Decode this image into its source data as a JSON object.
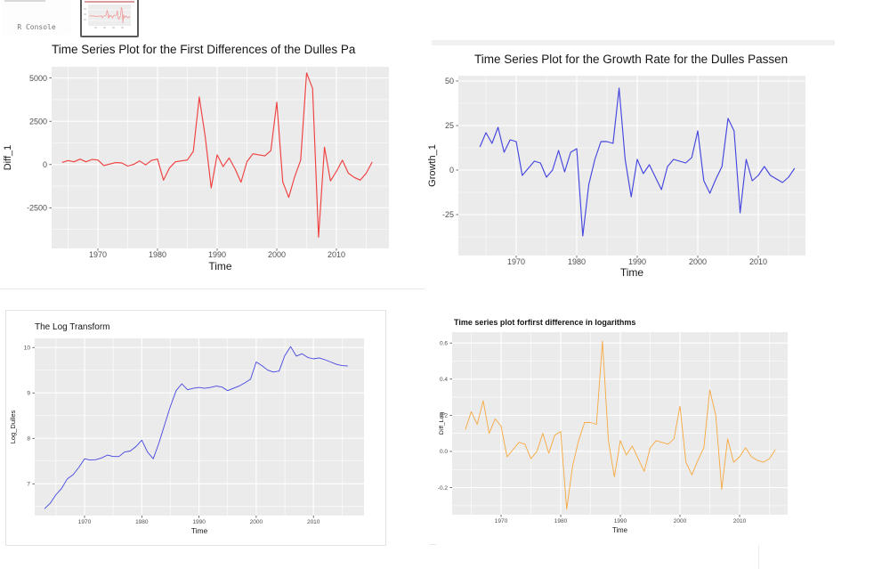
{
  "taskbar": {
    "console_thumbnail_label": "R Console"
  },
  "theme": {
    "panel_bg": "#ebebeb",
    "grid_color": "#ffffff",
    "tick_text_color": "#4d4d4d",
    "axis_title_color": "#1a1a1a"
  },
  "chart_data": [
    {
      "type": "line",
      "title": "Time Series Plot for the First Differences of the Dulles Pa",
      "xlabel": "Time",
      "ylabel": "Diff_1",
      "color": "#f04040",
      "x_ticks": [
        "1970",
        "1980",
        "1990",
        "2000",
        "2010"
      ],
      "y_ticks": [
        "5000",
        "2500",
        "0",
        "-2500"
      ],
      "x_range": [
        1964,
        2016
      ],
      "ylim": [
        -4850,
        5650
      ],
      "grid": "on",
      "values": [
        120,
        230,
        160,
        310,
        160,
        290,
        260,
        -60,
        30,
        110,
        90,
        -90,
        10,
        210,
        -20,
        240,
        310,
        -900,
        -200,
        160,
        210,
        260,
        760,
        3900,
        1600,
        -1350,
        560,
        -120,
        380,
        -250,
        -1020,
        170,
        620,
        560,
        500,
        800,
        3600,
        -1000,
        -1900,
        -700,
        250,
        5300,
        4400,
        -4200,
        1000,
        -950,
        -400,
        250,
        -500,
        -750,
        -900,
        -500,
        150
      ]
    },
    {
      "type": "line",
      "title": "Time Series Plot for the Growth Rate for the Dulles Passen",
      "xlabel": "Time",
      "ylabel": "Growth_1",
      "color": "#4545e0",
      "x_ticks": [
        "1970",
        "1980",
        "1990",
        "2000",
        "2010"
      ],
      "y_ticks": [
        "50",
        "25",
        "0",
        "-25"
      ],
      "x_range": [
        1964,
        2016
      ],
      "ylim": [
        -48,
        53
      ],
      "grid": "on",
      "values": [
        13,
        21,
        15,
        24,
        10,
        17,
        16,
        -3,
        1,
        5,
        4,
        -4,
        0,
        11,
        -1,
        10,
        12,
        -37,
        -8,
        6,
        16,
        16,
        15,
        46,
        6,
        -15,
        6,
        -2,
        3,
        -4,
        -11,
        2,
        6,
        5,
        4,
        7,
        22,
        -6,
        -13,
        -5,
        2,
        29,
        22,
        -24,
        6,
        -6,
        -3,
        2,
        -3,
        -5,
        -7,
        -4,
        1
      ]
    },
    {
      "type": "line",
      "title": "The Log Transform",
      "xlabel": "Time",
      "ylabel": "Log_Dulles",
      "color": "#4545e0",
      "x_ticks": [
        "1970",
        "1980",
        "1990",
        "2000",
        "2010"
      ],
      "y_ticks": [
        "10",
        "9",
        "8",
        "7"
      ],
      "x_range": [
        1963,
        2016
      ],
      "ylim": [
        6.3,
        10.2
      ],
      "grid": "on",
      "values": [
        6.45,
        6.57,
        6.76,
        6.9,
        7.11,
        7.2,
        7.36,
        7.55,
        7.52,
        7.53,
        7.57,
        7.63,
        7.6,
        7.6,
        7.7,
        7.72,
        7.82,
        7.96,
        7.7,
        7.55,
        7.9,
        8.3,
        8.7,
        9.05,
        9.2,
        9.07,
        9.1,
        9.12,
        9.1,
        9.12,
        9.15,
        9.13,
        9.05,
        9.1,
        9.15,
        9.22,
        9.3,
        9.68,
        9.6,
        9.5,
        9.46,
        9.48,
        9.82,
        10.02,
        9.81,
        9.86,
        9.78,
        9.75,
        9.77,
        9.73,
        9.68,
        9.63,
        9.6,
        9.59
      ]
    },
    {
      "type": "line",
      "title": "Time series plot forfirst difference in logarithms",
      "xlabel": "Time",
      "ylabel": "Diff_Log",
      "color": "#f7a83e",
      "x_ticks": [
        "1970",
        "1980",
        "1990",
        "2000",
        "2010"
      ],
      "y_ticks": [
        "0.6",
        "0.4",
        "0.2",
        "0.0",
        "-0.2"
      ],
      "x_range": [
        1964,
        2016
      ],
      "ylim": [
        -0.35,
        0.66
      ],
      "grid": "on",
      "values": [
        0.12,
        0.22,
        0.15,
        0.28,
        0.1,
        0.18,
        0.14,
        -0.03,
        0.01,
        0.05,
        0.04,
        -0.04,
        0,
        0.1,
        -0.01,
        0.09,
        0.11,
        -0.32,
        -0.08,
        0.06,
        0.16,
        0.16,
        0.15,
        0.61,
        0.06,
        -0.14,
        0.06,
        -0.02,
        0.03,
        -0.04,
        -0.11,
        0.02,
        0.06,
        0.05,
        0.04,
        0.07,
        0.25,
        -0.06,
        -0.13,
        -0.05,
        0.02,
        0.34,
        0.2,
        -0.21,
        0.07,
        -0.06,
        -0.03,
        0.02,
        -0.03,
        -0.05,
        -0.06,
        -0.04,
        0.01
      ]
    }
  ]
}
